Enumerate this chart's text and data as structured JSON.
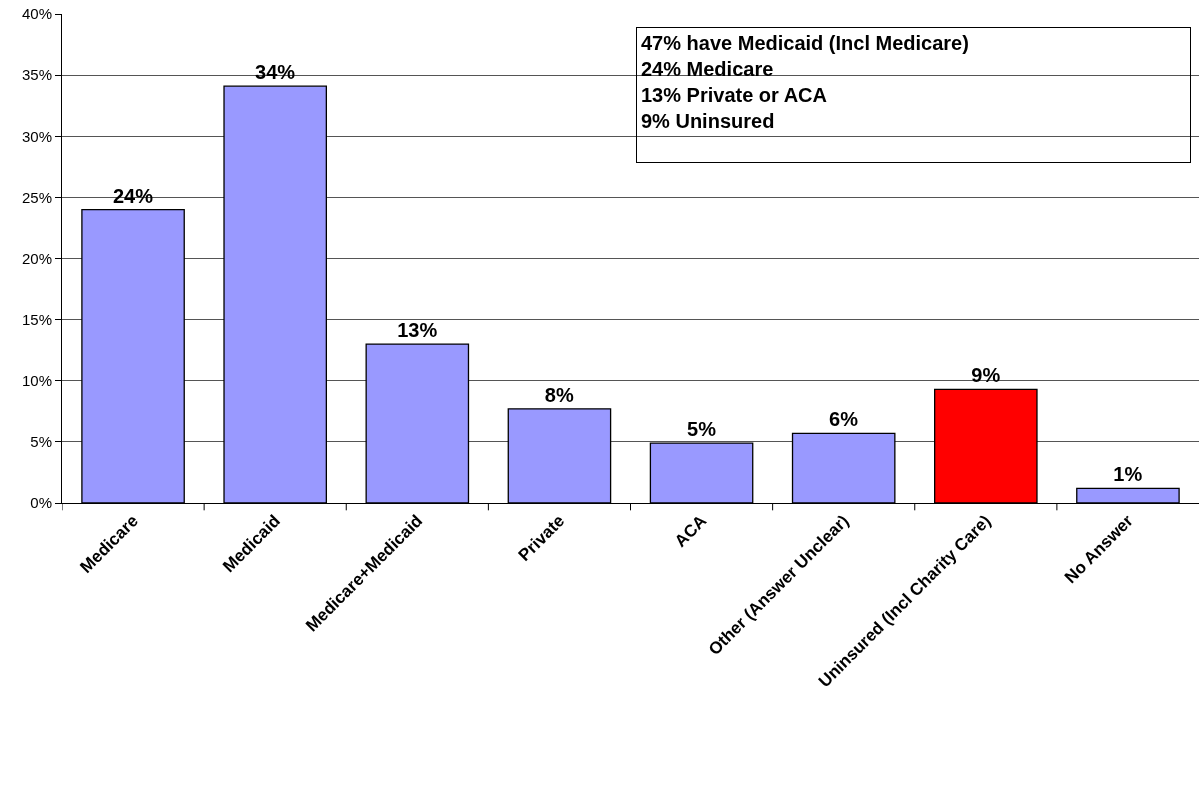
{
  "chart_data": {
    "type": "bar",
    "categories": [
      "Medicare",
      "Medicaid",
      "Medicare+Medicaid",
      "Private",
      "ACA",
      "Other (Answer Unclear)",
      "Uninsured (Incl Charity Care)",
      "No Answer"
    ],
    "values": [
      24,
      34.1,
      13,
      7.7,
      4.9,
      5.7,
      9.3,
      1.2
    ],
    "colors": [
      "#9999ff",
      "#9999ff",
      "#9999ff",
      "#9999ff",
      "#9999ff",
      "#9999ff",
      "#ff0000",
      "#9999ff"
    ],
    "value_labels": [
      "24%",
      "34%",
      "13%",
      "8%",
      "5%",
      "6%",
      "9%",
      "1%"
    ],
    "ylim": [
      0,
      40
    ],
    "yticks": [
      {
        "value": 0,
        "label": "0%"
      },
      {
        "value": 5,
        "label": "5%"
      },
      {
        "value": 10,
        "label": "10%"
      },
      {
        "value": 15,
        "label": "15%"
      },
      {
        "value": 20,
        "label": "20%"
      },
      {
        "value": 25,
        "label": "25%"
      },
      {
        "value": 30,
        "label": "30%"
      },
      {
        "value": 35,
        "label": "35%"
      },
      {
        "value": 40,
        "label": "40%"
      }
    ],
    "grid": "y",
    "annotations": [
      "47% have Medicaid (Incl Medicare)",
      "24% Medicare",
      "13% Private or ACA",
      "9% Uninsured"
    ]
  }
}
